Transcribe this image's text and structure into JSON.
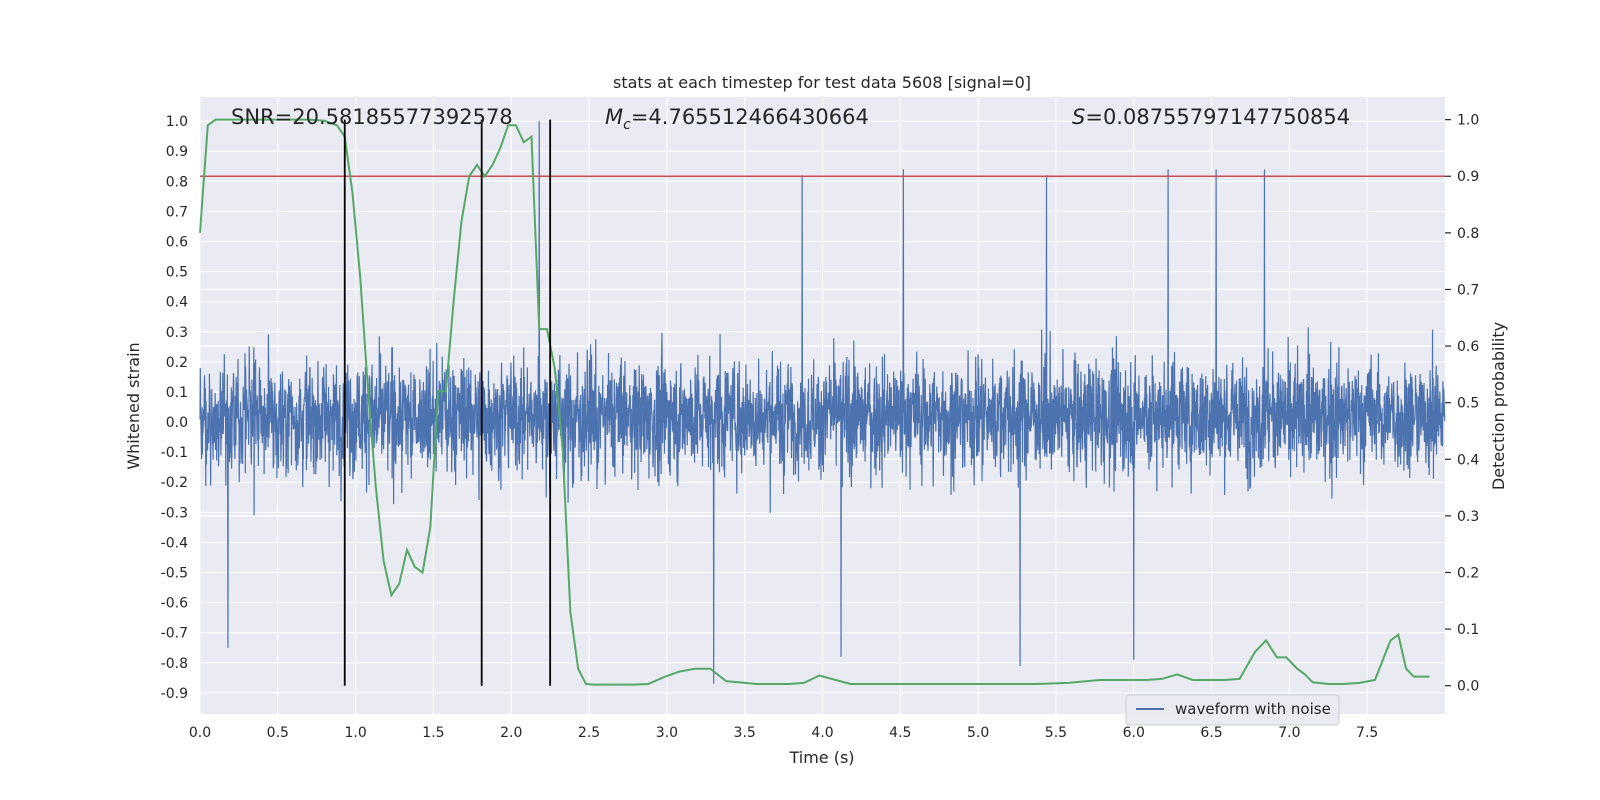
{
  "chart_data": {
    "type": "line",
    "title": "stats at each timestep for test data 5608 [signal=0]",
    "xlabel": "Time (s)",
    "ylabel": "Whitened strain",
    "y2label": "Detection probability",
    "xlim": [
      0.0,
      8.0
    ],
    "ylim": [
      -0.97,
      1.08
    ],
    "y2lim": [
      -0.05,
      1.04
    ],
    "xticks": [
      "0.0",
      "0.5",
      "1.0",
      "1.5",
      "2.0",
      "2.5",
      "3.0",
      "3.5",
      "4.0",
      "4.5",
      "5.0",
      "5.5",
      "6.0",
      "6.5",
      "7.0",
      "7.5"
    ],
    "xtick_values": [
      0,
      0.5,
      1,
      1.5,
      2,
      2.5,
      3,
      3.5,
      4,
      4.5,
      5,
      5.5,
      6,
      6.5,
      7,
      7.5
    ],
    "yticks": [
      "1.0",
      "0.9",
      "0.8",
      "0.7",
      "0.6",
      "0.5",
      "0.4",
      "0.3",
      "0.2",
      "0.1",
      "0.0",
      "-0.1",
      "-0.2",
      "-0.3",
      "-0.4",
      "-0.5",
      "-0.6",
      "-0.7",
      "-0.8",
      "-0.9"
    ],
    "ytick_values": [
      1.0,
      0.9,
      0.8,
      0.7,
      0.6,
      0.5,
      0.4,
      0.3,
      0.2,
      0.1,
      0.0,
      -0.1,
      -0.2,
      -0.3,
      -0.4,
      -0.5,
      -0.6,
      -0.7,
      -0.8,
      -0.9
    ],
    "y2ticks": [
      "1.0",
      "0.9",
      "0.8",
      "0.7",
      "0.6",
      "0.5",
      "0.4",
      "0.3",
      "0.2",
      "0.1",
      "0.0"
    ],
    "y2tick_values": [
      1.0,
      0.9,
      0.8,
      0.7,
      0.6,
      0.5,
      0.4,
      0.3,
      0.2,
      0.1,
      0.0
    ],
    "annotations": {
      "snr": "SNR=20.58185577392578",
      "mc_symbol": "M",
      "mc_sub": "c",
      "mc_value": "=4.765512466430664",
      "s_symbol": "S",
      "s_value": "=0.08755797147750854"
    },
    "threshold": {
      "axis": "y2",
      "value": 0.9
    },
    "vlines": [
      0.93,
      1.81,
      2.25
    ],
    "waveform": {
      "name": "waveform with noise",
      "color": "#4c72b0",
      "sample_rate_hz": 512,
      "duration_s": 8.0,
      "typical_range": [
        -0.38,
        0.46
      ],
      "notable_peaks": [
        {
          "t": 2.18,
          "v": 1.0
        },
        {
          "t": 3.87,
          "v": 0.82
        },
        {
          "t": 4.52,
          "v": 0.84
        },
        {
          "t": 5.44,
          "v": 0.82
        },
        {
          "t": 6.22,
          "v": 0.84
        },
        {
          "t": 6.53,
          "v": 0.84
        },
        {
          "t": 6.84,
          "v": 0.84
        },
        {
          "t": 3.3,
          "v": -0.87
        },
        {
          "t": 5.27,
          "v": -0.81
        },
        {
          "t": 6.0,
          "v": -0.79
        },
        {
          "t": 4.12,
          "v": -0.78
        },
        {
          "t": 0.18,
          "v": -0.75
        }
      ]
    },
    "probability": {
      "name": "detection probability",
      "color": "#55a868",
      "t": [
        0.0,
        0.05,
        0.1,
        0.2,
        0.3,
        0.4,
        0.5,
        0.6,
        0.7,
        0.8,
        0.88,
        0.93,
        0.98,
        1.03,
        1.08,
        1.13,
        1.18,
        1.23,
        1.28,
        1.33,
        1.38,
        1.43,
        1.48,
        1.53,
        1.58,
        1.63,
        1.68,
        1.73,
        1.78,
        1.83,
        1.88,
        1.93,
        1.98,
        2.03,
        2.08,
        2.13,
        2.18,
        2.23,
        2.28,
        2.33,
        2.38,
        2.43,
        2.48,
        2.53,
        2.58,
        2.68,
        2.78,
        2.88,
        2.98,
        3.08,
        3.18,
        3.28,
        3.38,
        3.58,
        3.78,
        3.88,
        3.98,
        4.18,
        4.48,
        4.78,
        5.08,
        5.38,
        5.58,
        5.78,
        5.98,
        6.08,
        6.18,
        6.28,
        6.38,
        6.48,
        6.58,
        6.68,
        6.78,
        6.85,
        6.92,
        6.98,
        7.05,
        7.1,
        7.15,
        7.25,
        7.35,
        7.45,
        7.55,
        7.65,
        7.7,
        7.75,
        7.8,
        7.85,
        7.9
      ],
      "p": [
        0.8,
        0.99,
        1.0,
        1.0,
        1.0,
        1.0,
        1.0,
        1.0,
        1.0,
        0.998,
        0.99,
        0.97,
        0.87,
        0.72,
        0.52,
        0.35,
        0.22,
        0.16,
        0.18,
        0.24,
        0.21,
        0.2,
        0.28,
        0.52,
        0.52,
        0.68,
        0.82,
        0.9,
        0.92,
        0.9,
        0.92,
        0.95,
        0.99,
        0.99,
        0.96,
        0.97,
        0.63,
        0.63,
        0.56,
        0.42,
        0.13,
        0.03,
        0.003,
        0.002,
        0.002,
        0.002,
        0.002,
        0.003,
        0.015,
        0.025,
        0.03,
        0.03,
        0.008,
        0.003,
        0.003,
        0.005,
        0.018,
        0.003,
        0.003,
        0.003,
        0.003,
        0.003,
        0.005,
        0.01,
        0.01,
        0.01,
        0.012,
        0.02,
        0.01,
        0.01,
        0.01,
        0.012,
        0.06,
        0.08,
        0.05,
        0.05,
        0.03,
        0.02,
        0.006,
        0.003,
        0.003,
        0.005,
        0.01,
        0.08,
        0.09,
        0.03,
        0.016,
        0.016,
        0.016
      ]
    },
    "legend": {
      "placement": "lower-right",
      "entries": [
        "waveform with noise"
      ]
    },
    "grid": true
  },
  "colors": {
    "axes_bg": "#eaeaf2",
    "grid": "#ffffff",
    "waveform": "#4c72b0",
    "probability": "#55a868",
    "threshold": "#c44e52",
    "vlines": "#000000"
  }
}
